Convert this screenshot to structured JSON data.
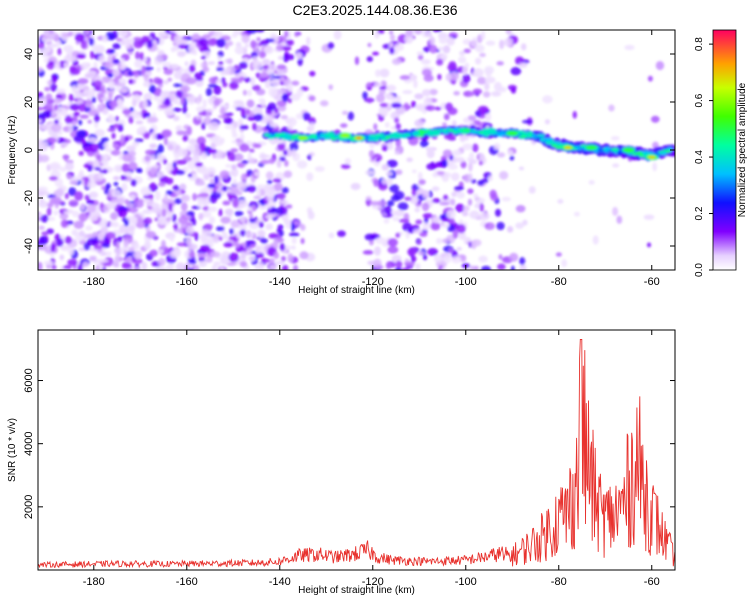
{
  "title": "C2E3.2025.144.08.36.E36",
  "chart_data": [
    {
      "type": "heatmap",
      "xlabel": "Height of straight line (km)",
      "ylabel": "Frequency (Hz)",
      "xlim": [
        -192,
        -55
      ],
      "ylim": [
        -50,
        50
      ],
      "x_ticks": [
        -180,
        -160,
        -140,
        -120,
        -100,
        -80,
        -60
      ],
      "y_ticks": [
        -40,
        -20,
        0,
        20,
        40
      ],
      "colorbar": {
        "label": "Normalized spectral amplitude",
        "range": [
          0.0,
          0.85
        ],
        "ticks": [
          0.0,
          0.2,
          0.4,
          0.6,
          0.8
        ]
      },
      "band_centerline": {
        "x": [
          -143,
          -140,
          -135,
          -130,
          -125,
          -120,
          -115,
          -110,
          -105,
          -100,
          -95,
          -90,
          -85,
          -80,
          -75,
          -70,
          -65,
          -60,
          -56
        ],
        "y": [
          6,
          6,
          5,
          6,
          5,
          5,
          6,
          7,
          8,
          8,
          7,
          7,
          6,
          2,
          1,
          0,
          -1,
          -2,
          0
        ]
      },
      "band_peaks": [
        {
          "x": -135,
          "y": 5,
          "amp": 0.65
        },
        {
          "x": -126,
          "y": 6,
          "amp": 0.6
        },
        {
          "x": -123,
          "y": 5,
          "amp": 0.82
        },
        {
          "x": -115,
          "y": 6,
          "amp": 0.45
        },
        {
          "x": -107,
          "y": 7,
          "amp": 0.4
        },
        {
          "x": -95,
          "y": 8,
          "amp": 0.45
        },
        {
          "x": -90,
          "y": 7,
          "amp": 0.5
        },
        {
          "x": -78,
          "y": 1,
          "amp": 0.7
        },
        {
          "x": -73,
          "y": 1,
          "amp": 0.55
        },
        {
          "x": -65,
          "y": 0,
          "amp": 0.55
        },
        {
          "x": -60,
          "y": -3,
          "amp": 0.75
        }
      ],
      "noise_regions": [
        {
          "x_range": [
            -192,
            -138
          ],
          "density": 0.95
        },
        {
          "x_range": [
            -138,
            -133
          ],
          "density": 0.35
        },
        {
          "x_range": [
            -133,
            -121
          ],
          "density": 0.05
        },
        {
          "x_range": [
            -121,
            -110
          ],
          "density": 0.55
        },
        {
          "x_range": [
            -110,
            -95
          ],
          "density": 0.6
        },
        {
          "x_range": [
            -95,
            -87
          ],
          "density": 0.2
        },
        {
          "x_range": [
            -87,
            -55
          ],
          "density": 0.03
        }
      ]
    },
    {
      "type": "line",
      "xlabel": "Height of straight line (km)",
      "ylabel": "SNR (10 * v/v)",
      "xlim": [
        -192,
        -55
      ],
      "ylim": [
        0,
        7600
      ],
      "x_ticks": [
        -180,
        -160,
        -140,
        -120,
        -100,
        -80,
        -60
      ],
      "y_ticks": [
        2000,
        4000,
        6000
      ],
      "series": [
        {
          "color": "#e8322e",
          "x": [
            -192,
            -185,
            -175,
            -165,
            -155,
            -145,
            -140,
            -136,
            -132,
            -128,
            -124,
            -121,
            -119,
            -116,
            -112,
            -108,
            -104,
            -100,
            -96,
            -92,
            -89,
            -86,
            -84,
            -82,
            -80,
            -78,
            -76,
            -75.2,
            -74,
            -72,
            -70,
            -68,
            -66,
            -64,
            -63,
            -62,
            -60,
            -58,
            -56,
            -55
          ],
          "y": [
            180,
            200,
            220,
            210,
            230,
            250,
            300,
            500,
            550,
            450,
            550,
            700,
            450,
            350,
            320,
            300,
            320,
            350,
            450,
            600,
            800,
            1200,
            1500,
            2000,
            2500,
            2800,
            4500,
            7300,
            5500,
            3200,
            2500,
            2600,
            3200,
            4800,
            5300,
            4200,
            2800,
            1800,
            1000,
            500
          ]
        }
      ]
    }
  ]
}
